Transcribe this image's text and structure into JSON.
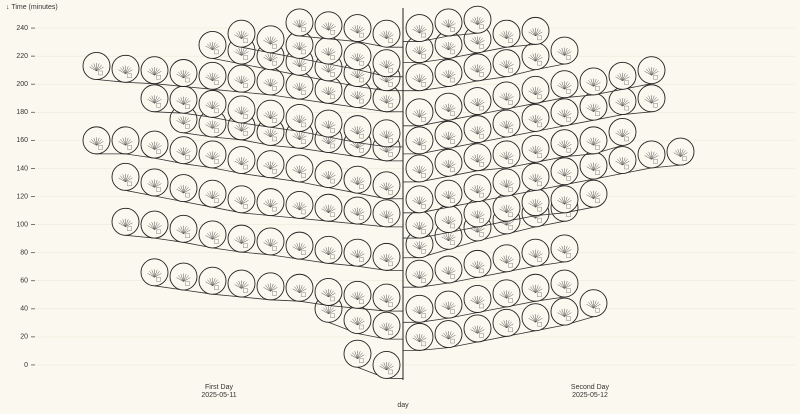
{
  "chart_data": {
    "type": "dot",
    "y_label": "↓ Time (minutes)",
    "x_label": "day",
    "categories": [
      "First Day",
      "Second Day"
    ],
    "dates": [
      "2025-05-11",
      "2025-05-12"
    ],
    "ylim": [
      -15,
      260
    ],
    "yticks": [
      0,
      20,
      40,
      60,
      80,
      100,
      120,
      140,
      160,
      180,
      200,
      220,
      240
    ],
    "grid": true,
    "groups": [
      {
        "rows": [
          [
            0,
            8
          ],
          [
            28,
            32,
            40
          ],
          [
            48,
            50,
            52,
            55,
            56,
            58,
            60,
            63,
            66
          ],
          [
            77,
            80,
            82,
            85,
            88,
            90,
            93,
            97,
            100,
            102
          ],
          [
            108,
            110,
            112,
            114,
            116,
            118,
            122,
            126,
            130,
            134
          ],
          [
            128,
            132,
            136,
            140,
            143,
            146,
            150,
            153,
            157,
            160,
            160
          ],
          [
            155,
            158,
            161,
            164,
            166,
            170,
            172,
            175
          ],
          [
            165,
            168,
            172,
            176,
            179,
            182,
            186,
            189,
            190
          ],
          [
            190,
            193,
            196,
            199,
            202,
            204,
            206,
            208,
            210,
            211,
            213
          ],
          [
            205,
            208,
            212,
            216,
            220,
            224,
            228
          ],
          [
            215,
            220,
            224,
            228,
            232,
            236
          ],
          [
            236,
            240,
            242,
            244
          ]
        ]
      },
      {
        "rows": [
          [
            20,
            22,
            26,
            30,
            34,
            38,
            44
          ],
          [
            40,
            43,
            47,
            51,
            55,
            58
          ],
          [
            65,
            68,
            72,
            76,
            80,
            83
          ],
          [
            86,
            92,
            98,
            103,
            108,
            112
          ],
          [
            100,
            104,
            108,
            112,
            116,
            118,
            122
          ],
          [
            118,
            122,
            126,
            130,
            134,
            138,
            142,
            146,
            150,
            152
          ],
          [
            140,
            144,
            148,
            150,
            154,
            158,
            160,
            166
          ],
          [
            160,
            164,
            168,
            172,
            176,
            180,
            184,
            188,
            190
          ],
          [
            180,
            184,
            188,
            192,
            196,
            200,
            202,
            206,
            210
          ],
          [
            205,
            208,
            212,
            215,
            220,
            224
          ],
          [
            225,
            228,
            232,
            236,
            238
          ],
          [
            240,
            244,
            246
          ]
        ]
      }
    ]
  }
}
